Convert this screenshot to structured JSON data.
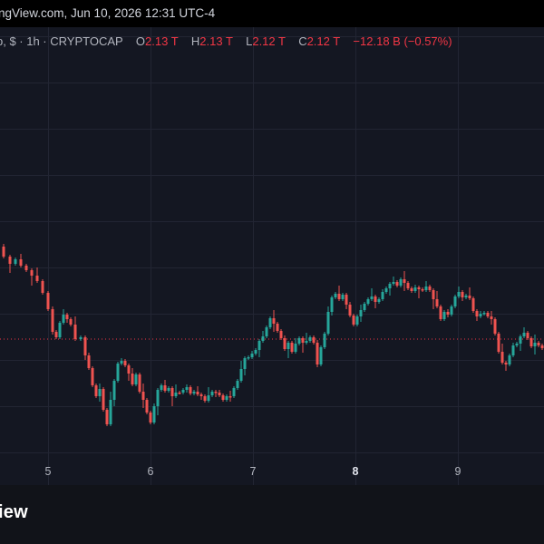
{
  "header": {
    "source_line": "ngView.com, Jun 10, 2026 12:31 UTC-4"
  },
  "legend": {
    "symbol_info": "p, $ · 1h · CRYPTOCAP",
    "open_label": "O",
    "open_value": "2.13 T",
    "high_label": "H",
    "high_value": "2.13 T",
    "low_label": "L",
    "low_value": "2.12 T",
    "close_label": "C",
    "close_value": "2.12 T",
    "change": "−12.18 B (−0.57%)"
  },
  "colors": {
    "up": "#26a69a",
    "down": "#ef5350",
    "panel_bg": "#141722",
    "grid": "#222533",
    "price_line": "#f23645"
  },
  "xaxis": {
    "ticks": [
      {
        "label": "5",
        "bold": false
      },
      {
        "label": "6",
        "bold": false
      },
      {
        "label": "7",
        "bold": false
      },
      {
        "label": "8",
        "bold": true
      },
      {
        "label": "9",
        "bold": false
      }
    ]
  },
  "footer": {
    "brand": "iew"
  },
  "chart_data": {
    "type": "candlestick",
    "interval": "1h",
    "x_tick_labels": [
      "5",
      "6",
      "7",
      "8",
      "9"
    ],
    "price_scale_visible": false,
    "last_price_line": true,
    "grid": true,
    "path": [
      [
        0,
        272
      ],
      [
        8,
        283
      ],
      [
        14,
        291
      ],
      [
        20,
        286
      ],
      [
        26,
        293
      ],
      [
        32,
        298
      ],
      [
        38,
        304
      ],
      [
        44,
        310
      ],
      [
        50,
        323
      ],
      [
        56,
        341
      ],
      [
        60,
        366
      ],
      [
        64,
        372
      ],
      [
        68,
        356
      ],
      [
        72,
        347
      ],
      [
        76,
        352
      ],
      [
        80,
        358
      ],
      [
        86,
        374
      ],
      [
        92,
        372
      ],
      [
        96,
        392
      ],
      [
        100,
        406
      ],
      [
        104,
        425
      ],
      [
        108,
        437
      ],
      [
        112,
        429
      ],
      [
        116,
        452
      ],
      [
        120,
        468
      ],
      [
        124,
        441
      ],
      [
        128,
        420
      ],
      [
        132,
        401
      ],
      [
        136,
        398
      ],
      [
        140,
        403
      ],
      [
        144,
        412
      ],
      [
        148,
        424
      ],
      [
        152,
        413
      ],
      [
        156,
        432
      ],
      [
        160,
        441
      ],
      [
        164,
        455
      ],
      [
        168,
        466
      ],
      [
        172,
        448
      ],
      [
        176,
        430
      ],
      [
        180,
        425
      ],
      [
        184,
        431
      ],
      [
        188,
        428
      ],
      [
        192,
        437
      ],
      [
        196,
        433
      ],
      [
        200,
        433
      ],
      [
        204,
        430
      ],
      [
        208,
        427
      ],
      [
        212,
        434
      ],
      [
        216,
        432
      ],
      [
        220,
        435
      ],
      [
        224,
        437
      ],
      [
        228,
        442
      ],
      [
        232,
        436
      ],
      [
        236,
        432
      ],
      [
        240,
        433
      ],
      [
        244,
        436
      ],
      [
        248,
        441
      ],
      [
        252,
        437
      ],
      [
        256,
        437
      ],
      [
        260,
        428
      ],
      [
        264,
        420
      ],
      [
        268,
        407
      ],
      [
        272,
        395
      ],
      [
        276,
        394
      ],
      [
        280,
        390
      ],
      [
        284,
        386
      ],
      [
        288,
        376
      ],
      [
        292,
        371
      ],
      [
        296,
        361
      ],
      [
        300,
        351
      ],
      [
        304,
        357
      ],
      [
        308,
        365
      ],
      [
        312,
        373
      ],
      [
        316,
        385
      ],
      [
        320,
        378
      ],
      [
        324,
        388
      ],
      [
        328,
        379
      ],
      [
        332,
        373
      ],
      [
        336,
        378
      ],
      [
        340,
        376
      ],
      [
        344,
        372
      ],
      [
        348,
        378
      ],
      [
        352,
        402
      ],
      [
        356,
        383
      ],
      [
        360,
        368
      ],
      [
        364,
        344
      ],
      [
        368,
        328
      ],
      [
        372,
        324
      ],
      [
        376,
        330
      ],
      [
        380,
        325
      ],
      [
        384,
        336
      ],
      [
        388,
        348
      ],
      [
        392,
        358
      ],
      [
        396,
        349
      ],
      [
        400,
        342
      ],
      [
        404,
        335
      ],
      [
        408,
        330
      ],
      [
        412,
        327
      ],
      [
        416,
        333
      ],
      [
        420,
        330
      ],
      [
        424,
        322
      ],
      [
        428,
        318
      ],
      [
        432,
        313
      ],
      [
        436,
        311
      ],
      [
        440,
        315
      ],
      [
        444,
        308
      ],
      [
        448,
        312
      ],
      [
        452,
        318
      ],
      [
        456,
        321
      ],
      [
        460,
        317
      ],
      [
        464,
        319
      ],
      [
        468,
        320
      ],
      [
        472,
        316
      ],
      [
        476,
        320
      ],
      [
        480,
        330
      ],
      [
        484,
        338
      ],
      [
        488,
        352
      ],
      [
        492,
        344
      ],
      [
        496,
        347
      ],
      [
        500,
        338
      ],
      [
        504,
        327
      ],
      [
        508,
        322
      ],
      [
        512,
        328
      ],
      [
        516,
        326
      ],
      [
        520,
        329
      ],
      [
        524,
        343
      ],
      [
        528,
        349
      ],
      [
        532,
        346
      ],
      [
        536,
        345
      ],
      [
        540,
        349
      ],
      [
        544,
        352
      ],
      [
        548,
        368
      ],
      [
        552,
        388
      ],
      [
        556,
        400
      ],
      [
        560,
        402
      ],
      [
        564,
        392
      ],
      [
        568,
        381
      ],
      [
        572,
        379
      ],
      [
        576,
        371
      ],
      [
        580,
        367
      ],
      [
        584,
        373
      ],
      [
        588,
        382
      ],
      [
        592,
        378
      ],
      [
        596,
        381
      ],
      [
        600,
        384
      ]
    ]
  }
}
